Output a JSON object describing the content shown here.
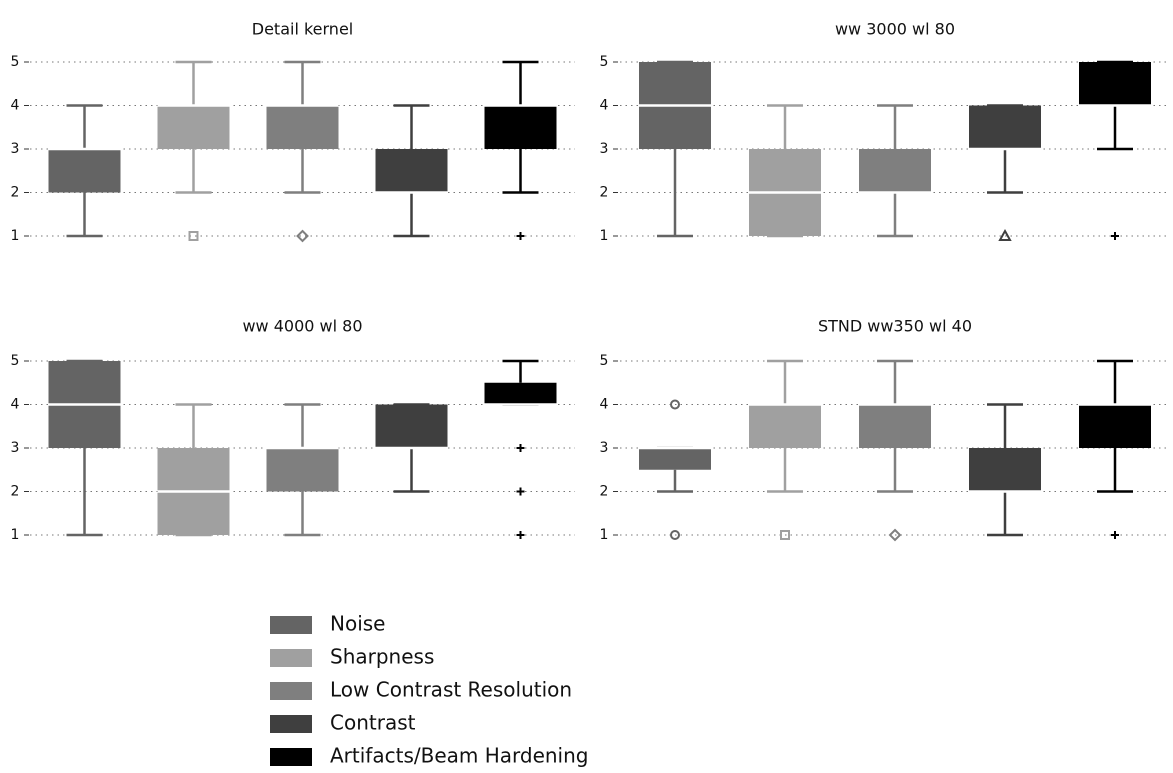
{
  "chart_data": {
    "type": "box",
    "ylim": [
      1,
      5
    ],
    "yticks": [
      1,
      2,
      3,
      4,
      5
    ],
    "grid": true,
    "series": [
      {
        "name": "Noise",
        "color": "#646464",
        "marker": "circle"
      },
      {
        "name": "Sharpness",
        "color": "#a0a0a0",
        "marker": "square"
      },
      {
        "name": "Low Contrast Resolution",
        "color": "#7f7f7f",
        "marker": "diamond"
      },
      {
        "name": "Contrast",
        "color": "#3f3f3f",
        "marker": "triangle"
      },
      {
        "name": "Artifacts/Beam Hardening",
        "color": "#000000",
        "marker": "plus"
      }
    ],
    "panels": [
      {
        "title": "Detail kernel",
        "boxes": [
          {
            "whislo": 1,
            "q1": 2,
            "med": 3,
            "q3": 3,
            "whishi": 4,
            "fliers": []
          },
          {
            "whislo": 2,
            "q1": 3,
            "med": 4,
            "q3": 4,
            "whishi": 5,
            "fliers": [
              1
            ]
          },
          {
            "whislo": 2,
            "q1": 3,
            "med": 4,
            "q3": 4,
            "whishi": 5,
            "fliers": [
              1
            ]
          },
          {
            "whislo": 1,
            "q1": 2,
            "med": 2,
            "q3": 3,
            "whishi": 4,
            "fliers": []
          },
          {
            "whislo": 2,
            "q1": 3,
            "med": 4,
            "q3": 4,
            "whishi": 5,
            "fliers": [
              1
            ]
          }
        ]
      },
      {
        "title": "ww 3000 wl 80",
        "boxes": [
          {
            "whislo": 1,
            "q1": 3,
            "med": 4,
            "q3": 5,
            "whishi": 5,
            "fliers": []
          },
          {
            "whislo": 1,
            "q1": 1,
            "med": 2,
            "q3": 3,
            "whishi": 4,
            "fliers": []
          },
          {
            "whislo": 1,
            "q1": 2,
            "med": 2,
            "q3": 3,
            "whishi": 4,
            "fliers": []
          },
          {
            "whislo": 2,
            "q1": 3,
            "med": 3,
            "q3": 4,
            "whishi": 4,
            "fliers": [
              1
            ]
          },
          {
            "whislo": 3,
            "q1": 4,
            "med": 4,
            "q3": 5,
            "whishi": 5,
            "fliers": [
              1
            ]
          }
        ]
      },
      {
        "title": "ww 4000 wl 80",
        "boxes": [
          {
            "whislo": 1,
            "q1": 3,
            "med": 4,
            "q3": 5,
            "whishi": 5,
            "fliers": []
          },
          {
            "whislo": 1,
            "q1": 1,
            "med": 2,
            "q3": 3,
            "whishi": 4,
            "fliers": []
          },
          {
            "whislo": 1,
            "q1": 2,
            "med": 3,
            "q3": 3,
            "whishi": 4,
            "fliers": []
          },
          {
            "whislo": 2,
            "q1": 3,
            "med": 3,
            "q3": 4,
            "whishi": 4,
            "fliers": []
          },
          {
            "whislo": 4,
            "q1": 4,
            "med": 4,
            "q3": 4.5,
            "whishi": 5,
            "fliers": [
              3,
              2,
              1
            ]
          }
        ]
      },
      {
        "title": "STND ww350 wl 40",
        "boxes": [
          {
            "whislo": 2,
            "q1": 2.5,
            "med": 3,
            "q3": 3,
            "whishi": 3,
            "fliers": [
              4,
              1
            ]
          },
          {
            "whislo": 2,
            "q1": 3,
            "med": 4,
            "q3": 4,
            "whishi": 5,
            "fliers": [
              1
            ]
          },
          {
            "whislo": 2,
            "q1": 3,
            "med": 4,
            "q3": 4,
            "whishi": 5,
            "fliers": [
              1
            ]
          },
          {
            "whislo": 1,
            "q1": 2,
            "med": 2,
            "q3": 3,
            "whishi": 4,
            "fliers": []
          },
          {
            "whislo": 2,
            "q1": 3,
            "med": 4,
            "q3": 4,
            "whishi": 5,
            "fliers": [
              1
            ]
          }
        ]
      }
    ]
  }
}
